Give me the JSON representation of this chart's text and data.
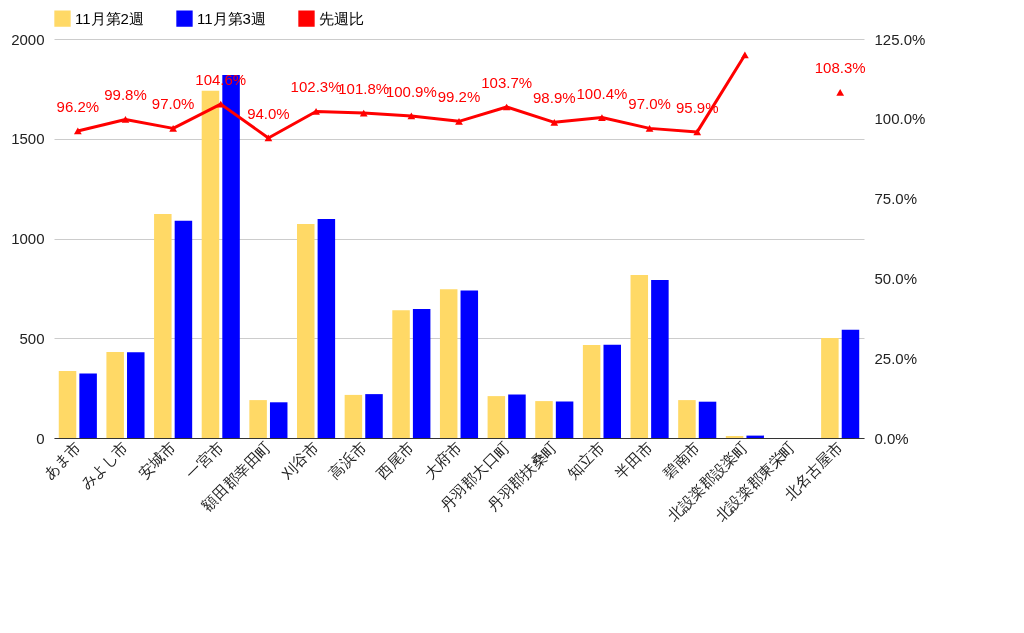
{
  "chart_data": {
    "type": "bar",
    "categories": [
      "あま市",
      "みよし市",
      "安城市",
      "一宮市",
      "額田郡幸田町",
      "刈谷市",
      "高浜市",
      "西尾市",
      "大府市",
      "丹羽郡大口町",
      "丹羽郡扶桑町",
      "知立市",
      "半田市",
      "碧南市",
      "北設楽郡設楽町",
      "北設楽郡東栄町",
      "北名古屋市"
    ],
    "series": [
      {
        "name": "11月第2週",
        "color": "#ffd966",
        "values": [
          336,
          431,
          1123,
          1740,
          190,
          1073,
          216,
          640,
          745,
          210,
          185,
          466,
          817,
          190,
          10,
          null,
          501
        ]
      },
      {
        "name": "11月第3週",
        "color": "#0000ff",
        "values": [
          323,
          430,
          1089,
          1820,
          179,
          1098,
          220,
          646,
          739,
          218,
          183,
          468,
          792,
          182,
          12,
          null,
          543
        ]
      },
      {
        "name": "先週比",
        "color": "#ff0000",
        "type": "line",
        "axis": "y2",
        "marker": "triangle",
        "values": [
          96.2,
          99.8,
          97.0,
          104.6,
          94.0,
          102.3,
          101.8,
          100.9,
          99.2,
          103.7,
          98.9,
          100.4,
          97.0,
          95.9,
          120,
          null,
          108.3
        ],
        "value_labels": [
          "96.2%",
          "99.8%",
          "97.0%",
          "104.6%",
          "94.0%",
          "102.3%",
          "101.8%",
          "100.9%",
          "99.2%",
          "103.7%",
          "98.9%",
          "100.4%",
          "97.0%",
          "95.9%",
          null,
          null,
          "108.3%"
        ]
      }
    ],
    "ylim": [
      0,
      2000
    ],
    "yticks": [
      0,
      500,
      1000,
      1500,
      2000
    ],
    "y2lim": [
      0,
      125
    ],
    "y2ticks": [
      {
        "value": 0,
        "label": "0.0%"
      },
      {
        "value": 25,
        "label": "25.0%"
      },
      {
        "value": 50,
        "label": "50.0%"
      },
      {
        "value": 75,
        "label": "75.0%"
      },
      {
        "value": 100,
        "label": "100.0%"
      },
      {
        "value": 125,
        "label": "125.0%"
      }
    ],
    "grid": "y",
    "legend": "top"
  }
}
